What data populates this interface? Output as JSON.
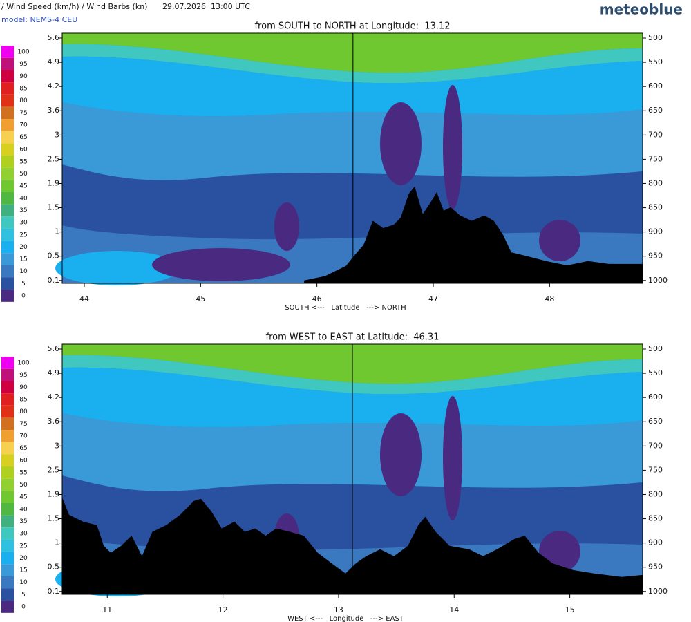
{
  "header": {
    "title": "/ Wind Speed (km/h) / Wind Barbs (kn)",
    "time": "29.07.2026  13:00 UTC",
    "brand": "meteoblue",
    "model": "model: NEMS-4 CEU"
  },
  "colorbar": {
    "ticks": [
      100,
      95,
      90,
      85,
      80,
      75,
      70,
      65,
      60,
      55,
      50,
      45,
      40,
      35,
      30,
      25,
      20,
      15,
      10,
      5,
      0
    ],
    "colors": [
      "#f000f0",
      "#c0107a",
      "#d00040",
      "#e02020",
      "#e03018",
      "#d07020",
      "#f0a030",
      "#f8d050",
      "#d8d020",
      "#b0d020",
      "#90d030",
      "#70c830",
      "#50b840",
      "#40b080",
      "#40c8c0",
      "#30c0e0",
      "#1ab0f0",
      "#3a9ad8",
      "#3a78c0",
      "#2a50a0",
      "#4a2a80"
    ]
  },
  "chart_data": [
    {
      "type": "cross-section",
      "title": "from SOUTH to NORTH at Longitude:  13.12",
      "xlabel": "SOUTH <---   Latitude   ---> NORTH",
      "xlim": [
        43.81,
        48.8
      ],
      "xticks": [
        44,
        45,
        46,
        47,
        48
      ],
      "yticks": [
        5.6,
        4.9,
        4.2,
        3.6,
        3.0,
        2.5,
        1.9,
        1.5,
        1.0,
        0.5,
        0.1
      ],
      "y2lim": [
        490,
        1006
      ],
      "y2ticks": [
        500,
        550,
        600,
        650,
        700,
        750,
        800,
        850,
        900,
        950,
        1000
      ],
      "marker_x": 46.31,
      "terrain": {
        "x": [
          45.89,
          46.07,
          46.25,
          46.32,
          46.4,
          46.48,
          46.57,
          46.66,
          46.72,
          46.79,
          46.84,
          46.91,
          46.97,
          47.03,
          47.09,
          47.15,
          47.23,
          47.33,
          47.44,
          47.52,
          47.6,
          47.67,
          47.79,
          47.97,
          48.15,
          48.33,
          48.51,
          48.8
        ],
        "values": [
          1000,
          991,
          970,
          949,
          927,
          877,
          892,
          885,
          870,
          821,
          806,
          863,
          842,
          818,
          856,
          849,
          866,
          877,
          866,
          877,
          906,
          942,
          949,
          960,
          969,
          960,
          966,
          966
        ]
      }
    },
    {
      "type": "cross-section",
      "title": "from WEST to EAST at Latitude:  46.31",
      "xlabel": "WEST <---   Longitude   ---> EAST",
      "xlim": [
        10.61,
        15.63
      ],
      "xticks": [
        11,
        12,
        13,
        14,
        15
      ],
      "yticks": [
        5.6,
        4.9,
        4.2,
        3.6,
        3.0,
        2.5,
        1.9,
        1.5,
        1.0,
        0.5,
        0.1
      ],
      "y2lim": [
        490,
        1006
      ],
      "y2ticks": [
        500,
        550,
        600,
        650,
        700,
        750,
        800,
        850,
        900,
        950,
        1000
      ],
      "marker_x": 13.12,
      "terrain": {
        "x": [
          10.61,
          10.67,
          10.79,
          10.91,
          10.97,
          11.03,
          11.12,
          11.21,
          11.3,
          11.39,
          11.51,
          11.63,
          11.75,
          11.81,
          11.9,
          11.99,
          12.1,
          12.19,
          12.28,
          12.37,
          12.46,
          12.58,
          12.7,
          12.82,
          12.94,
          13.06,
          13.15,
          13.24,
          13.36,
          13.48,
          13.6,
          13.69,
          13.75,
          13.84,
          13.96,
          14.13,
          14.25,
          14.37,
          14.52,
          14.61,
          14.73,
          14.85,
          15.03,
          15.21,
          15.45,
          15.63
        ],
        "values": [
          806,
          842,
          856,
          863,
          906,
          920,
          906,
          885,
          927,
          877,
          863,
          842,
          813,
          809,
          835,
          870,
          856,
          877,
          870,
          885,
          870,
          877,
          885,
          920,
          942,
          963,
          942,
          927,
          913,
          927,
          906,
          863,
          846,
          877,
          906,
          913,
          927,
          913,
          892,
          885,
          920,
          942,
          956,
          963,
          970,
          966
        ]
      }
    }
  ]
}
